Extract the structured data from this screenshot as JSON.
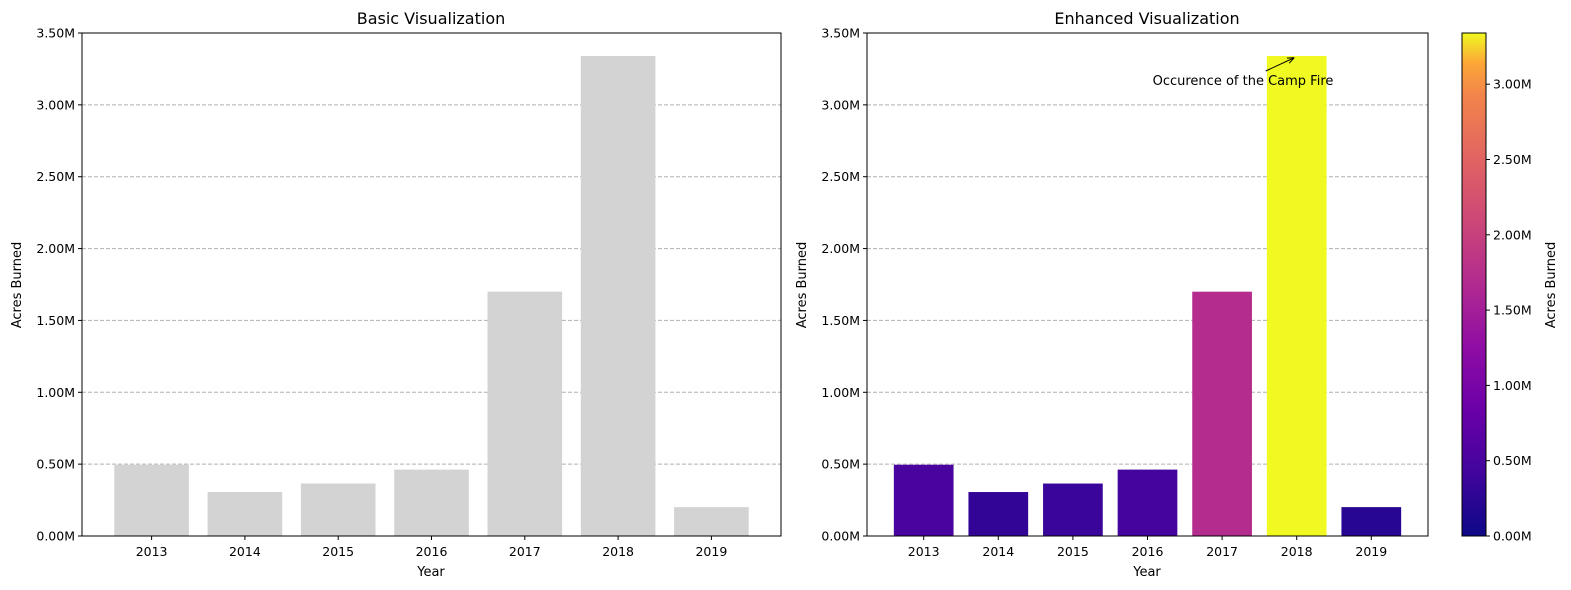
{
  "chart_data": [
    {
      "type": "bar",
      "title": "Basic Visualization",
      "xlabel": "Year",
      "ylabel": "Acres Burned",
      "categories": [
        "2013",
        "2014",
        "2015",
        "2016",
        "2017",
        "2018",
        "2019"
      ],
      "values": [
        496000,
        306000,
        365000,
        462000,
        1700000,
        3340000,
        201000
      ],
      "ylim": [
        0,
        3500000
      ],
      "yticks": [
        0,
        500000,
        1000000,
        1500000,
        2000000,
        2500000,
        3000000,
        3500000
      ],
      "ytick_labels": [
        "0.00M",
        "0.50M",
        "1.00M",
        "1.50M",
        "2.00M",
        "2.50M",
        "3.00M",
        "3.50M"
      ],
      "grid": "y-dashed",
      "bar_color": "#d3d3d3"
    },
    {
      "type": "bar",
      "title": "Enhanced Visualization",
      "xlabel": "Year",
      "ylabel": "Acres Burned",
      "categories": [
        "2013",
        "2014",
        "2015",
        "2016",
        "2017",
        "2018",
        "2019"
      ],
      "values": [
        496000,
        306000,
        365000,
        462000,
        1700000,
        3340000,
        201000
      ],
      "ylim": [
        0,
        3500000
      ],
      "yticks": [
        0,
        500000,
        1000000,
        1500000,
        2000000,
        2500000,
        3000000,
        3500000
      ],
      "ytick_labels": [
        "0.00M",
        "0.50M",
        "1.00M",
        "1.50M",
        "2.00M",
        "2.50M",
        "3.00M",
        "3.50M"
      ],
      "grid": "y-dashed",
      "colormap": "plasma",
      "annotation": {
        "text": "Occurence of the Camp Fire",
        "target_category": "2018"
      },
      "colorbar": {
        "label": "Acres Burned",
        "range": [
          0,
          3340000
        ],
        "ticks": [
          0,
          500000,
          1000000,
          1500000,
          2000000,
          2500000,
          3000000
        ],
        "tick_labels": [
          "0.00M",
          "0.50M",
          "1.00M",
          "1.50M",
          "2.00M",
          "2.50M",
          "3.00M"
        ]
      }
    }
  ]
}
